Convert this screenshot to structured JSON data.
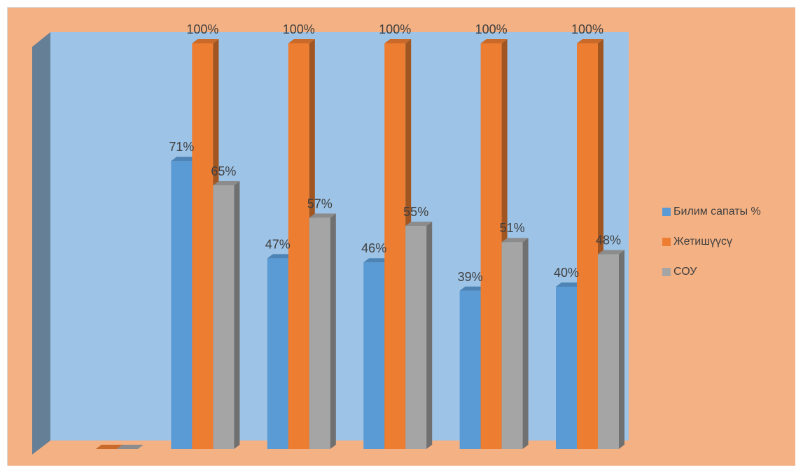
{
  "colors": {
    "chart_background": "#f4b183",
    "plot_background": "#9dc3e6",
    "side_wall": "#657f97",
    "text": "#404040"
  },
  "chart_data": {
    "type": "bar",
    "title": "",
    "xlabel": "",
    "ylabel": "",
    "ylim": [
      0,
      100
    ],
    "grid": false,
    "legend_position": "right",
    "categories": [
      "",
      "",
      "",
      "",
      "",
      ""
    ],
    "series": [
      {
        "name": "Билим сапаты %",
        "color": "#5b9bd5",
        "values": [
          null,
          71,
          47,
          46,
          39,
          40
        ],
        "labels": [
          "",
          "71%",
          "47%",
          "46%",
          "39%",
          "40%"
        ]
      },
      {
        "name": "Жетишүүсү",
        "color": "#ed7d31",
        "values": [
          0,
          100,
          100,
          100,
          100,
          100
        ],
        "labels": [
          "",
          "100%",
          "100%",
          "100%",
          "100%",
          "100%"
        ]
      },
      {
        "name": "СОУ",
        "color": "#a5a5a5",
        "values": [
          0,
          65,
          57,
          55,
          51,
          48
        ],
        "labels": [
          "",
          "65%",
          "57%",
          "55%",
          "51%",
          "48%"
        ]
      }
    ]
  }
}
